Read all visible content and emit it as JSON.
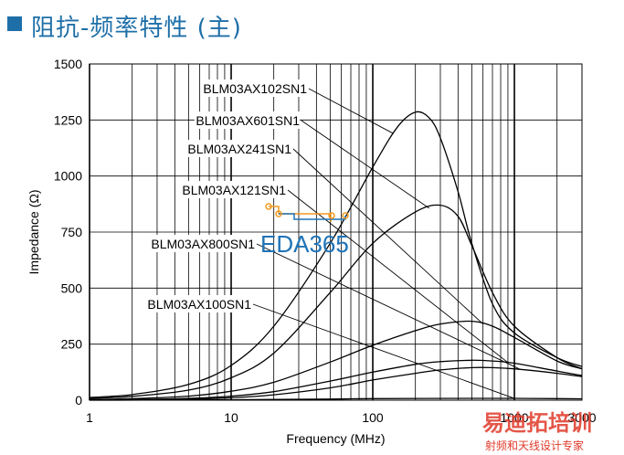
{
  "page": {
    "title": "阻抗-频率特性 (主)"
  },
  "watermarks": {
    "logo_text": "EDA365",
    "brand_cn": "易迪拓培训",
    "brand_sub": "射频和天线设计专家"
  },
  "colors": {
    "title": "#1e6fa8",
    "curve": "#000000",
    "grid": "#000000",
    "logo_blue": "#1f73b7",
    "logo_orange": "#f29a1f",
    "brand_red": "#e03a2a"
  },
  "chart_data": {
    "type": "line",
    "xscale": "log",
    "xlabel": "Frequency (MHz)",
    "ylabel": "Impedance (Ω)",
    "xlim": [
      1,
      3000
    ],
    "ylim": [
      0,
      1500
    ],
    "xticks": [
      {
        "value": 1,
        "label": "1"
      },
      {
        "value": 10,
        "label": "10"
      },
      {
        "value": 100,
        "label": "100"
      },
      {
        "value": 1000,
        "label": "1000"
      },
      {
        "value": 3000,
        "label": "3000"
      }
    ],
    "yticks": [
      0,
      250,
      500,
      750,
      1000,
      1250,
      1500
    ],
    "grid": true,
    "series": [
      {
        "name": "BLM03AX102SN1",
        "points": [
          [
            1,
            12
          ],
          [
            2,
            25
          ],
          [
            5,
            70
          ],
          [
            10,
            155
          ],
          [
            20,
            330
          ],
          [
            50,
            700
          ],
          [
            100,
            1040
          ],
          [
            150,
            1220
          ],
          [
            200,
            1285
          ],
          [
            250,
            1260
          ],
          [
            300,
            1170
          ],
          [
            400,
            930
          ],
          [
            500,
            700
          ],
          [
            700,
            430
          ],
          [
            1000,
            300
          ],
          [
            2000,
            190
          ],
          [
            3000,
            150
          ]
        ]
      },
      {
        "name": "BLM03AX601SN1",
        "points": [
          [
            1,
            8
          ],
          [
            2,
            17
          ],
          [
            5,
            45
          ],
          [
            10,
            100
          ],
          [
            20,
            210
          ],
          [
            50,
            480
          ],
          [
            100,
            700
          ],
          [
            200,
            840
          ],
          [
            300,
            870
          ],
          [
            400,
            820
          ],
          [
            500,
            690
          ],
          [
            700,
            480
          ],
          [
            1000,
            330
          ],
          [
            2000,
            190
          ],
          [
            3000,
            140
          ]
        ]
      },
      {
        "name": "BLM03AX241SN1",
        "points": [
          [
            1,
            3
          ],
          [
            2,
            7
          ],
          [
            5,
            18
          ],
          [
            10,
            40
          ],
          [
            20,
            80
          ],
          [
            50,
            170
          ],
          [
            100,
            245
          ],
          [
            200,
            310
          ],
          [
            300,
            340
          ],
          [
            500,
            352
          ],
          [
            700,
            330
          ],
          [
            1000,
            280
          ],
          [
            2000,
            175
          ],
          [
            3000,
            140
          ]
        ]
      },
      {
        "name": "BLM03AX121SN1",
        "points": [
          [
            1,
            1
          ],
          [
            2,
            3
          ],
          [
            5,
            8
          ],
          [
            10,
            18
          ],
          [
            20,
            38
          ],
          [
            50,
            85
          ],
          [
            100,
            125
          ],
          [
            200,
            160
          ],
          [
            300,
            172
          ],
          [
            500,
            178
          ],
          [
            700,
            175
          ],
          [
            1000,
            165
          ],
          [
            2000,
            130
          ],
          [
            3000,
            110
          ]
        ]
      },
      {
        "name": "BLM03AX800SN1",
        "points": [
          [
            1,
            1
          ],
          [
            2,
            2
          ],
          [
            5,
            5
          ],
          [
            10,
            11
          ],
          [
            20,
            24
          ],
          [
            50,
            55
          ],
          [
            100,
            90
          ],
          [
            200,
            120
          ],
          [
            300,
            135
          ],
          [
            500,
            145
          ],
          [
            700,
            145
          ],
          [
            1000,
            140
          ],
          [
            2000,
            120
          ],
          [
            3000,
            105
          ]
        ]
      },
      {
        "name": "BLM03AX100SN1",
        "points": [
          [
            1,
            0
          ],
          [
            5,
            1
          ],
          [
            10,
            2
          ],
          [
            50,
            5
          ],
          [
            100,
            7
          ],
          [
            500,
            8
          ],
          [
            1000,
            8
          ],
          [
            2000,
            7
          ],
          [
            3000,
            6
          ]
        ]
      }
    ]
  }
}
